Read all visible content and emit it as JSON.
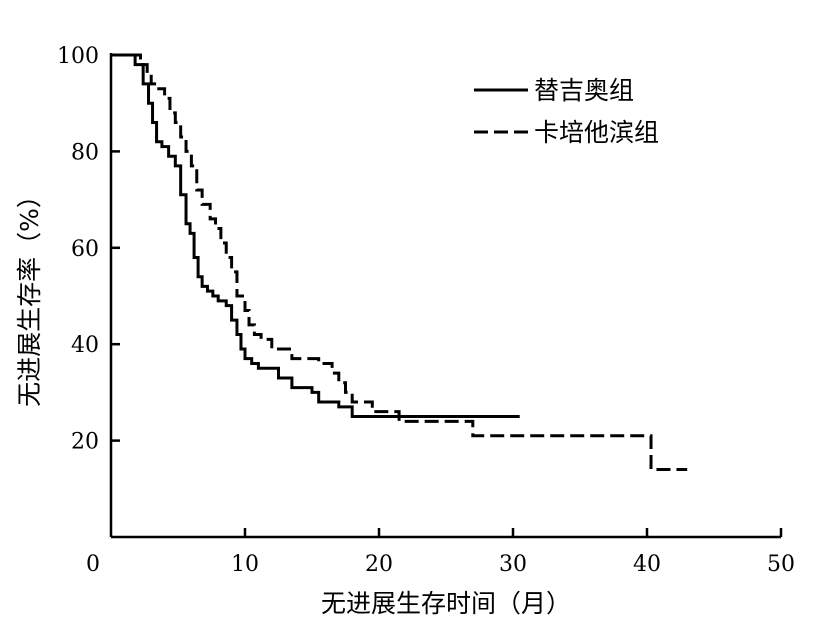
{
  "chart_data": {
    "type": "line",
    "step": true,
    "xlabel": "无进展生存时间（月）",
    "ylabel": "无进展生存率（%）",
    "xlim": [
      0,
      50
    ],
    "ylim": [
      0,
      100
    ],
    "xticks": [
      0,
      10,
      20,
      30,
      40,
      50
    ],
    "yticks": [
      20,
      40,
      60,
      80,
      100
    ],
    "grid": false,
    "legend_position": "top-right",
    "series": [
      {
        "name": "替吉奥组",
        "style": "solid",
        "x": [
          0,
          1.8,
          2.4,
          2.8,
          3.1,
          3.4,
          3.8,
          4.3,
          4.8,
          5.2,
          5.6,
          5.9,
          6.2,
          6.5,
          6.8,
          7.2,
          7.6,
          8.0,
          8.6,
          9.0,
          9.4,
          9.7,
          10.0,
          10.5,
          11.0,
          12.5,
          13.5,
          15.0,
          15.5,
          17.0,
          18.0,
          30.5
        ],
        "y": [
          100,
          98,
          94,
          90,
          86,
          82,
          81,
          79,
          77,
          71,
          65,
          63,
          58,
          54,
          52,
          51,
          50,
          49,
          48,
          45,
          42,
          39,
          37,
          36,
          35,
          33,
          31,
          30,
          28,
          27,
          25,
          25
        ]
      },
      {
        "name": "卡培他滨组",
        "style": "dashed",
        "x": [
          0,
          2.2,
          2.7,
          3.0,
          3.4,
          4.0,
          4.4,
          4.8,
          5.2,
          5.6,
          6.0,
          6.4,
          6.8,
          7.4,
          7.8,
          8.2,
          8.6,
          9.0,
          9.4,
          10.0,
          10.3,
          10.7,
          11.2,
          12.0,
          13.5,
          15.5,
          16.5,
          17.0,
          17.5,
          18.0,
          19.5,
          21.5,
          27.0,
          40.3,
          43.0
        ],
        "y": [
          100,
          98,
          96,
          94,
          93,
          91,
          88,
          86,
          83,
          80,
          77,
          72,
          69,
          66,
          64,
          61,
          58,
          55,
          50,
          47,
          44,
          42,
          41,
          39,
          37,
          36,
          34,
          32,
          30,
          28,
          26,
          24,
          21,
          14,
          14
        ]
      }
    ]
  }
}
